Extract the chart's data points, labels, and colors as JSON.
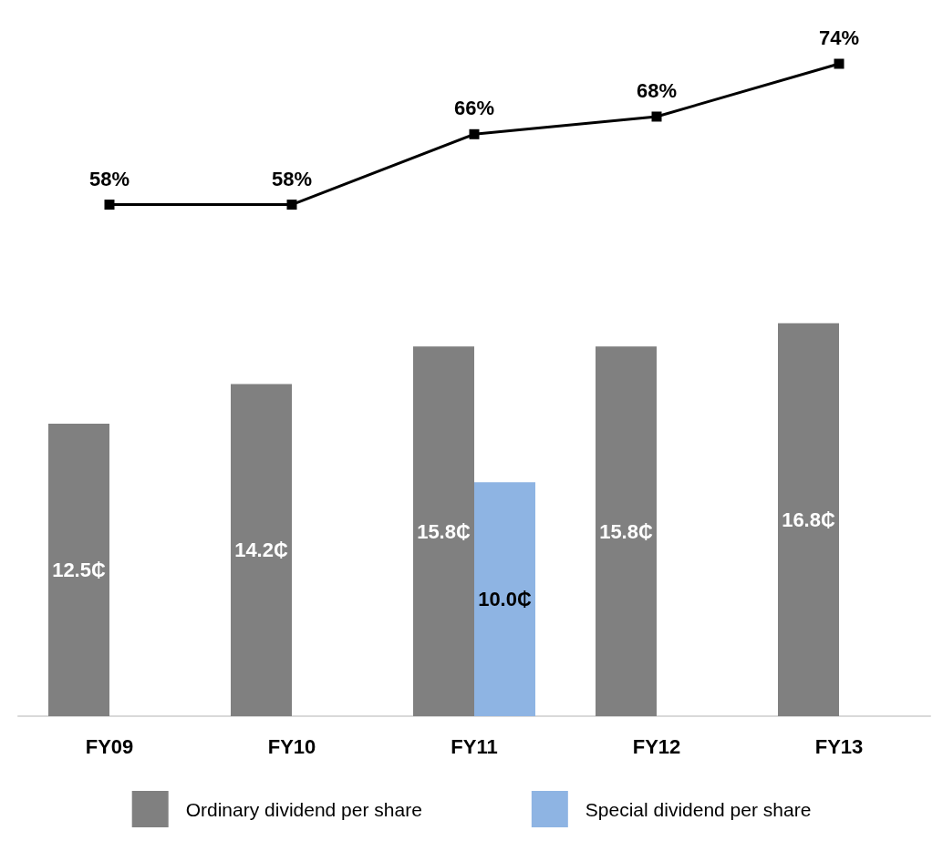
{
  "chart_data": [
    {
      "type": "line",
      "categories": [
        null,
        null,
        null,
        null,
        null
      ],
      "series": [
        {
          "color": "#000000",
          "values": [
            58,
            58,
            66,
            68,
            74
          ],
          "value_labels": [
            "58%",
            "58%",
            "66%",
            "68%",
            "74%"
          ],
          "marker": "square"
        }
      ]
    },
    {
      "type": "bar",
      "categories": [
        "FY09",
        "FY10",
        "FY11",
        "FY12",
        "FY13"
      ],
      "series": [
        {
          "name": "Ordinary dividend per share",
          "color": "#808080",
          "values": [
            12.5,
            14.2,
            15.8,
            15.8,
            16.8
          ],
          "value_labels": [
            "12.5₵",
            "14.2₵",
            "15.8₵",
            "15.8₵",
            "16.8₵"
          ]
        },
        {
          "name": "Special dividend per share",
          "color": "#8eb4e3",
          "values": [
            null,
            null,
            10.0,
            null,
            null
          ],
          "value_labels": [
            null,
            null,
            "10.0₵",
            null,
            null
          ]
        }
      ],
      "legend": "bottom",
      "grid": false
    }
  ]
}
